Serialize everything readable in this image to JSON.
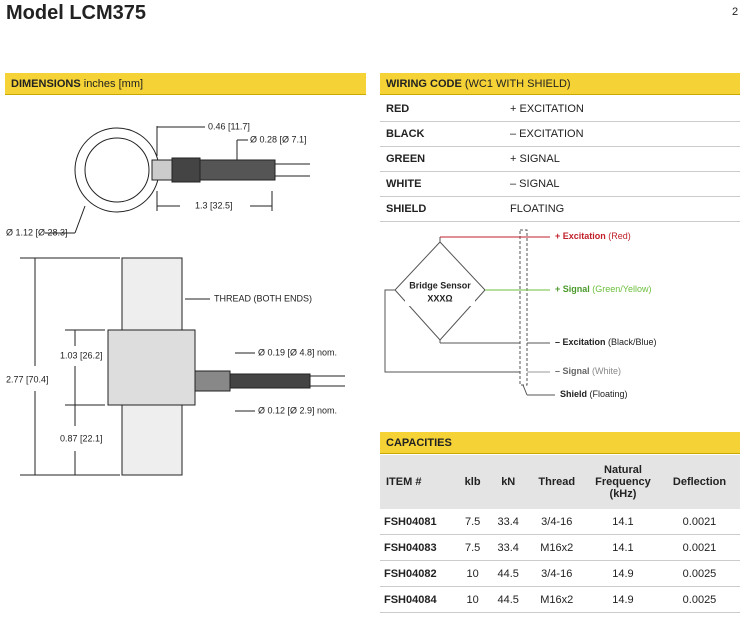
{
  "header": {
    "title": "Model LCM375",
    "page": "2"
  },
  "dimensions": {
    "heading": "DIMENSIONS",
    "unit": "inches [mm]",
    "labels": [
      "0.46 [11.7]",
      "Ø 0.28 [Ø 7.1]",
      "1.3 [32.5]",
      "Ø 1.12 [Ø 28.3]",
      "THREAD (BOTH ENDS)",
      "Ø 0.19 [Ø 4.8] nom.",
      "1.03 [26.2]",
      "2.77 [70.4]",
      "Ø 0.12 [Ø 2.9] nom.",
      "0.87 [22.1]"
    ]
  },
  "wiring": {
    "heading": "WIRING CODE",
    "subheading": "(WC1 WITH SHIELD)",
    "rows": [
      [
        "RED",
        "+ EXCITATION"
      ],
      [
        "BLACK",
        "– EXCITATION"
      ],
      [
        "GREEN",
        "+ SIGNAL"
      ],
      [
        "WHITE",
        "– SIGNAL"
      ],
      [
        "SHIELD",
        "FLOATING"
      ]
    ],
    "diagram": {
      "sensor": "Bridge Sensor",
      "resistance": "XXXΩ",
      "leads": [
        {
          "label": "+ Excitation",
          "note": "(Red)"
        },
        {
          "label": "+ Signal",
          "note": "(Green/Yellow)"
        },
        {
          "label": "– Excitation",
          "note": "(Black/Blue)"
        },
        {
          "label": "– Signal",
          "note": "(White)"
        },
        {
          "label": "Shield",
          "note": "(Floating)"
        }
      ]
    }
  },
  "capacities": {
    "heading": "CAPACITIES",
    "columns": [
      "ITEM #",
      "klb",
      "kN",
      "Thread",
      "Natural Frequency (kHz)",
      "Deflection"
    ],
    "rows": [
      [
        "FSH04081",
        "7.5",
        "33.4",
        "3/4-16",
        "14.1",
        "0.0021"
      ],
      [
        "FSH04083",
        "7.5",
        "33.4",
        "M16x2",
        "14.1",
        "0.0021"
      ],
      [
        "FSH04082",
        "10",
        "44.5",
        "3/4-16",
        "14.9",
        "0.0025"
      ],
      [
        "FSH04084",
        "10",
        "44.5",
        "M16x2",
        "14.9",
        "0.0025"
      ]
    ]
  }
}
